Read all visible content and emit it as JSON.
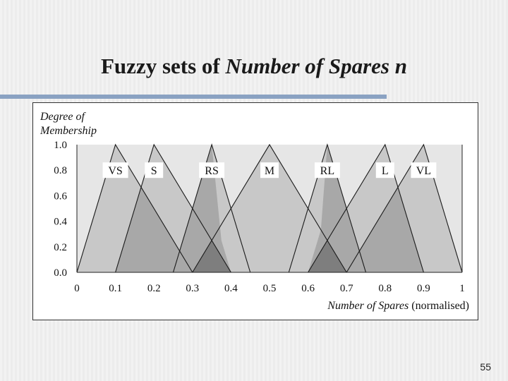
{
  "slide": {
    "title_plain": "Fuzzy sets of ",
    "title_italic": "Number of Spares n",
    "page_number": "55"
  },
  "chart_data": {
    "type": "area",
    "ylabel_line1": "Degree of",
    "ylabel_line2": "Membership",
    "xlabel_italic": "Number of Spares",
    "xlabel_suffix": " (normalised)",
    "xlim": [
      0,
      1
    ],
    "ylim": [
      0,
      1
    ],
    "x_ticks": [
      "0",
      "0.1",
      "0.2",
      "0.3",
      "0.4",
      "0.5",
      "0.6",
      "0.7",
      "0.8",
      "0.9",
      "1"
    ],
    "y_ticks": [
      "0.0",
      "0.2",
      "0.4",
      "0.6",
      "0.8",
      "1.0"
    ],
    "series": [
      {
        "name": "VS",
        "points": [
          [
            0,
            0
          ],
          [
            0.1,
            1
          ],
          [
            0.3,
            0
          ]
        ],
        "fill": "#c8c8c8"
      },
      {
        "name": "S",
        "points": [
          [
            0.1,
            0
          ],
          [
            0.2,
            1
          ],
          [
            0.4,
            0
          ]
        ],
        "fill": "#c8c8c8"
      },
      {
        "name": "RS",
        "points": [
          [
            0.25,
            0
          ],
          [
            0.35,
            1
          ],
          [
            0.45,
            0
          ]
        ],
        "fill": "#c8c8c8"
      },
      {
        "name": "M",
        "points": [
          [
            0.3,
            0
          ],
          [
            0.5,
            1
          ],
          [
            0.7,
            0
          ]
        ],
        "fill": "#c8c8c8"
      },
      {
        "name": "RL",
        "points": [
          [
            0.55,
            0
          ],
          [
            0.65,
            1
          ],
          [
            0.75,
            0
          ]
        ],
        "fill": "#c8c8c8"
      },
      {
        "name": "L",
        "points": [
          [
            0.6,
            0
          ],
          [
            0.8,
            1
          ],
          [
            0.9,
            0
          ]
        ],
        "fill": "#c8c8c8"
      },
      {
        "name": "VL",
        "points": [
          [
            0.7,
            0
          ],
          [
            0.9,
            1
          ],
          [
            1,
            0
          ]
        ],
        "fill": "#c8c8c8"
      }
    ],
    "overlaps": [
      {
        "points": [
          [
            0.1,
            0
          ],
          [
            0.1667,
            0.6667
          ],
          [
            0.3,
            0
          ]
        ],
        "fill": "#a8a8a8"
      },
      {
        "points": [
          [
            0.25,
            0
          ],
          [
            0.3,
            0.5
          ],
          [
            0.35,
            1
          ],
          [
            0.375,
            0.25
          ],
          [
            0.4,
            0
          ]
        ],
        "fill": "#a8a8a8"
      },
      {
        "points": [
          [
            0.6,
            0
          ],
          [
            0.6333,
            0.3333
          ],
          [
            0.65,
            1
          ],
          [
            0.7,
            0.5
          ],
          [
            0.75,
            0
          ]
        ],
        "fill": "#a8a8a8"
      },
      {
        "points": [
          [
            0.7,
            0
          ],
          [
            0.8333,
            0.6667
          ],
          [
            0.9,
            0
          ]
        ],
        "fill": "#a8a8a8"
      },
      {
        "points": [
          [
            0.25,
            0
          ],
          [
            0.3,
            0
          ]
        ],
        "fill": "#7e7e7e"
      },
      {
        "points": [
          [
            0.3,
            0
          ],
          [
            0.35,
            0.25
          ],
          [
            0.4,
            0
          ]
        ],
        "fill": "#7e7e7e"
      },
      {
        "points": [
          [
            0.6,
            0
          ],
          [
            0.65,
            0.25
          ],
          [
            0.7,
            0
          ]
        ],
        "fill": "#7e7e7e"
      },
      {
        "points": [
          [
            0.7,
            0
          ],
          [
            0.75,
            0
          ]
        ],
        "fill": "#7e7e7e"
      }
    ],
    "label_y": 0.8,
    "grid": false,
    "legend": "in-plot labels"
  }
}
